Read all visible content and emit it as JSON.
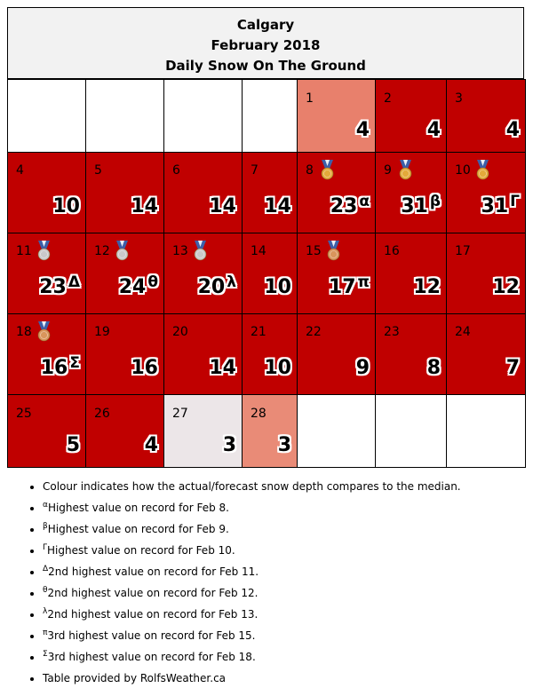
{
  "header": {
    "city": "Calgary",
    "month": "February 2018",
    "subtitle": "Daily Snow On The Ground"
  },
  "colors": {
    "much_above": "#c00000",
    "above": "#e8806c",
    "near": "#ece6e8"
  },
  "days": [
    {
      "day": "1",
      "value": "4",
      "sup": "",
      "medal": ""
    },
    {
      "day": "2",
      "value": "4",
      "sup": "",
      "medal": ""
    },
    {
      "day": "3",
      "value": "4",
      "sup": "",
      "medal": ""
    },
    {
      "day": "4",
      "value": "10",
      "sup": "",
      "medal": ""
    },
    {
      "day": "5",
      "value": "14",
      "sup": "",
      "medal": ""
    },
    {
      "day": "6",
      "value": "14",
      "sup": "",
      "medal": ""
    },
    {
      "day": "7",
      "value": "14",
      "sup": "",
      "medal": ""
    },
    {
      "day": "8",
      "value": "23",
      "sup": "α",
      "medal": "gold"
    },
    {
      "day": "9",
      "value": "31",
      "sup": "β",
      "medal": "gold"
    },
    {
      "day": "10",
      "value": "31",
      "sup": "Γ",
      "medal": "gold"
    },
    {
      "day": "11",
      "value": "23",
      "sup": "Δ",
      "medal": "silver"
    },
    {
      "day": "12",
      "value": "24",
      "sup": "θ",
      "medal": "silver"
    },
    {
      "day": "13",
      "value": "20",
      "sup": "λ",
      "medal": "silver"
    },
    {
      "day": "14",
      "value": "10",
      "sup": "",
      "medal": ""
    },
    {
      "day": "15",
      "value": "17",
      "sup": "π",
      "medal": "bronze"
    },
    {
      "day": "16",
      "value": "12",
      "sup": "",
      "medal": ""
    },
    {
      "day": "17",
      "value": "12",
      "sup": "",
      "medal": ""
    },
    {
      "day": "18",
      "value": "16",
      "sup": "Σ",
      "medal": "bronze"
    },
    {
      "day": "19",
      "value": "16",
      "sup": "",
      "medal": ""
    },
    {
      "day": "20",
      "value": "14",
      "sup": "",
      "medal": ""
    },
    {
      "day": "21",
      "value": "10",
      "sup": "",
      "medal": ""
    },
    {
      "day": "22",
      "value": "9",
      "sup": "",
      "medal": ""
    },
    {
      "day": "23",
      "value": "8",
      "sup": "",
      "medal": ""
    },
    {
      "day": "24",
      "value": "7",
      "sup": "",
      "medal": ""
    },
    {
      "day": "25",
      "value": "5",
      "sup": "",
      "medal": ""
    },
    {
      "day": "26",
      "value": "4",
      "sup": "",
      "medal": ""
    },
    {
      "day": "27",
      "value": "3",
      "sup": "",
      "medal": ""
    },
    {
      "day": "28",
      "value": "3",
      "sup": "",
      "medal": ""
    }
  ],
  "notes": [
    {
      "sup": "",
      "text": "Colour indicates how the actual/forecast snow depth compares to the median."
    },
    {
      "sup": "α",
      "text": "Highest value on record for Feb 8."
    },
    {
      "sup": "β",
      "text": "Highest value on record for Feb 9."
    },
    {
      "sup": "Γ",
      "text": "Highest value on record for Feb 10."
    },
    {
      "sup": "Δ",
      "text": "2nd highest value on record for Feb 11."
    },
    {
      "sup": "θ",
      "text": "2nd highest value on record for Feb 12."
    },
    {
      "sup": "λ",
      "text": "2nd highest value on record for Feb 13."
    },
    {
      "sup": "π",
      "text": "3rd highest value on record for Feb 15."
    },
    {
      "sup": "Σ",
      "text": "3rd highest value on record for Feb 18."
    },
    {
      "sup": "",
      "text": "Table provided by RolfsWeather.ca"
    }
  ]
}
